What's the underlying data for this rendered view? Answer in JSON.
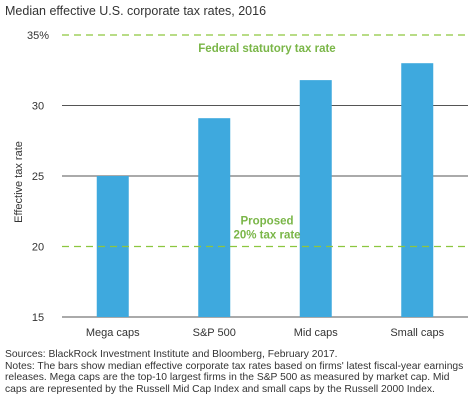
{
  "chart_data": {
    "type": "bar",
    "title": "Median effective U.S. corporate tax rates, 2016",
    "ylabel": "Effective tax rate",
    "xlabel": "",
    "categories": [
      "Mega caps",
      "S&P 500",
      "Mid caps",
      "Small caps"
    ],
    "values": [
      25.0,
      29.1,
      31.8,
      33.0
    ],
    "ylim": [
      15,
      35
    ],
    "yticks": [
      15,
      20,
      25,
      30,
      35
    ],
    "ytick_labels": [
      "15",
      "20",
      "25",
      "30",
      "35%"
    ],
    "grid": true,
    "reference_lines": [
      {
        "value": 35,
        "label": "Federal statutory tax rate"
      },
      {
        "value": 20,
        "label": "Proposed 20% tax rate",
        "label_lines": [
          "Proposed",
          "20% tax rate"
        ]
      }
    ]
  },
  "colors": {
    "bar": "#3ea9de",
    "reference_line": "#8dc63f",
    "reference_label": "#7ab648",
    "grid": "#555555",
    "text": "#333333"
  },
  "notes": {
    "sources": "Sources: BlackRock Investment Institute and Bloomberg, February 2017.",
    "notes": "Notes: The bars show median effective corporate tax rates based on firms' latest fiscal-year earnings releases. Mega caps are the top-10 largest firms in the S&P 500 as measured by market cap. Mid caps are represented by the Russell Mid Cap Index and small caps by the Russell 2000 Index."
  }
}
